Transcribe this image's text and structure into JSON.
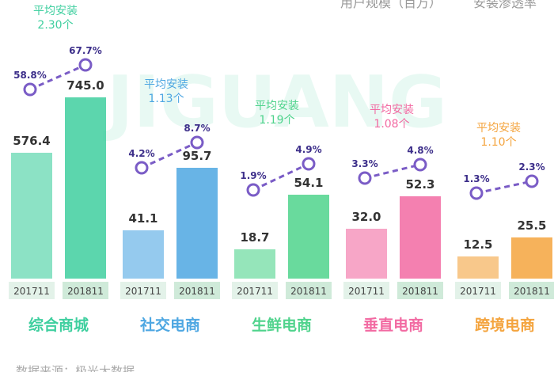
{
  "chart_data": {
    "type": "bar+line",
    "legend": [
      "用户规模（百万）",
      "安装渗透率"
    ],
    "x_periods": [
      "201711",
      "201811"
    ],
    "watermark": "JIGUANG 极光大数据",
    "colors": {
      "line": "#7a5cc6",
      "综合商城": "#3fcf9f",
      "社交电商": "#4ea7e2",
      "生鲜电商": "#4fd38c",
      "垂直电商": "#f26aa2",
      "跨境电商": "#f4a43e"
    },
    "groups": [
      {
        "category": "综合商城",
        "users": [
          576.4,
          745.0
        ],
        "penetration": [
          "58.8%",
          "67.7%"
        ],
        "avg_label": "平均安装",
        "avg": "2.30个"
      },
      {
        "category": "社交电商",
        "users": [
          41.1,
          95.7
        ],
        "penetration": [
          "4.2%",
          "8.7%"
        ],
        "avg_label": "平均安装",
        "avg": "1.13个"
      },
      {
        "category": "生鲜电商",
        "users": [
          18.7,
          54.1
        ],
        "penetration": [
          "1.9%",
          "4.9%"
        ],
        "avg_label": "平均安装",
        "avg": "1.19个"
      },
      {
        "category": "垂直电商",
        "users": [
          32.0,
          52.3
        ],
        "penetration": [
          "3.3%",
          "4.8%"
        ],
        "avg_label": "平均安装",
        "avg": "1.08个"
      },
      {
        "category": "跨境电商",
        "users": [
          12.5,
          25.5
        ],
        "penetration": [
          "1.3%",
          "2.3%"
        ],
        "avg_label": "平均安装",
        "avg": "1.10个"
      }
    ]
  },
  "footer": "数据来源：极光大数据"
}
